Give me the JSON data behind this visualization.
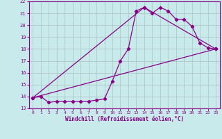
{
  "xlabel": "Windchill (Refroidissement éolien,°C)",
  "xlim": [
    -0.5,
    23.5
  ],
  "ylim": [
    13,
    22
  ],
  "yticks": [
    13,
    14,
    15,
    16,
    17,
    18,
    19,
    20,
    21,
    22
  ],
  "xticks": [
    0,
    1,
    2,
    3,
    4,
    5,
    6,
    7,
    8,
    9,
    10,
    11,
    12,
    13,
    14,
    15,
    16,
    17,
    18,
    19,
    20,
    21,
    22,
    23
  ],
  "bg_color": "#c8eaea",
  "grid_color": "#b0c8c8",
  "line_color": "#880088",
  "line1_x": [
    0,
    1,
    2,
    3,
    4,
    5,
    6,
    7,
    8,
    9,
    10,
    11,
    12,
    13,
    14,
    15,
    16,
    17,
    18,
    19,
    20,
    21,
    22,
    23
  ],
  "line1_y": [
    13.9,
    14.0,
    13.5,
    13.6,
    13.6,
    13.6,
    13.6,
    13.6,
    13.7,
    13.8,
    15.3,
    17.0,
    18.0,
    21.2,
    21.5,
    21.0,
    21.5,
    21.2,
    20.5,
    20.5,
    19.9,
    18.5,
    18.1,
    18.0
  ],
  "line2_x": [
    0,
    23
  ],
  "line2_y": [
    13.9,
    18.0
  ],
  "line3_x": [
    0,
    14,
    23
  ],
  "line3_y": [
    13.9,
    21.5,
    18.0
  ]
}
